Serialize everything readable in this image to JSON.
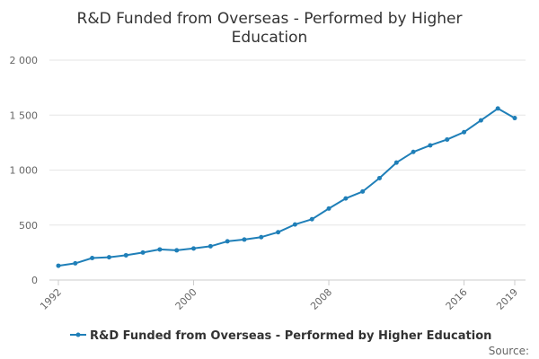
{
  "chart_data": {
    "type": "line",
    "title_lines": [
      "R&D Funded from Overseas - Performed by Higher",
      "Education"
    ],
    "xlabel": "",
    "ylabel": "",
    "xlim": [
      1992,
      2019
    ],
    "ylim": [
      0,
      2000
    ],
    "y_ticks": [
      0,
      500,
      1000,
      1500,
      2000
    ],
    "y_tick_labels": [
      "0",
      "500",
      "1 000",
      "1 500",
      "2 000"
    ],
    "x_ticks": [
      1992,
      2000,
      2008,
      2016,
      2019
    ],
    "x_tick_labels": [
      "1992",
      "2000",
      "2008",
      "2016",
      "2019"
    ],
    "grid": true,
    "legend_position": "bottom",
    "series": [
      {
        "name": "R&D Funded from Overseas - Performed by Higher Education",
        "color": "#1f7fb8",
        "x": [
          1992,
          1993,
          1994,
          1995,
          1996,
          1997,
          1998,
          1999,
          2000,
          2001,
          2002,
          2003,
          2004,
          2005,
          2006,
          2007,
          2008,
          2009,
          2010,
          2011,
          2012,
          2013,
          2014,
          2015,
          2016,
          2017,
          2018,
          2019
        ],
        "values": [
          130,
          152,
          200,
          207,
          225,
          250,
          278,
          270,
          287,
          307,
          352,
          368,
          390,
          435,
          505,
          553,
          650,
          742,
          805,
          927,
          1068,
          1165,
          1225,
          1278,
          1345,
          1452,
          1560,
          1473
        ]
      }
    ]
  },
  "source_label": "Source:"
}
